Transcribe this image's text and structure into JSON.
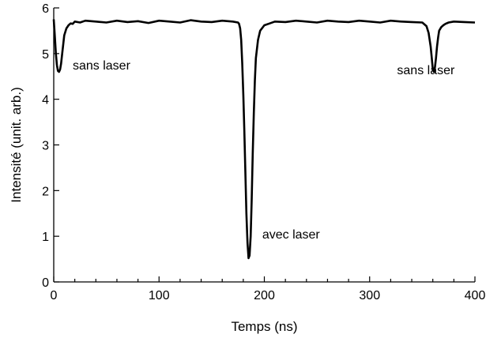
{
  "chart_data": {
    "type": "line",
    "title": "",
    "xlabel": "Temps (ns)",
    "ylabel": "Intensité (unit. arb.)",
    "xlim": [
      0,
      400
    ],
    "ylim": [
      0,
      6
    ],
    "xticks": [
      0,
      100,
      200,
      300,
      400
    ],
    "yticks": [
      0,
      1,
      2,
      3,
      4,
      5,
      6
    ],
    "minor_x_step": 20,
    "grid": false,
    "line_color": "#000000",
    "series": [
      {
        "x": [
          0,
          1,
          2,
          3,
          4,
          5,
          6,
          7,
          8,
          9,
          10,
          12,
          14,
          16,
          18,
          20,
          25,
          30,
          40,
          50,
          60,
          70,
          80,
          90,
          100,
          110,
          120,
          130,
          140,
          150,
          160,
          170,
          175,
          176,
          177,
          178,
          179,
          180,
          181,
          182,
          183,
          184,
          185,
          186,
          187,
          188,
          189,
          190,
          191,
          192,
          194,
          196,
          200,
          205,
          210,
          220,
          230,
          240,
          250,
          260,
          270,
          280,
          290,
          300,
          310,
          320,
          330,
          340,
          350,
          354,
          356,
          358,
          359,
          360,
          361,
          362,
          363,
          364,
          365,
          366,
          368,
          370,
          372,
          375,
          380,
          390,
          400
        ],
        "y": [
          5.75,
          5.4,
          5.0,
          4.75,
          4.62,
          4.6,
          4.65,
          4.78,
          5.0,
          5.2,
          5.4,
          5.55,
          5.62,
          5.66,
          5.65,
          5.7,
          5.68,
          5.72,
          5.7,
          5.68,
          5.72,
          5.69,
          5.71,
          5.67,
          5.72,
          5.7,
          5.68,
          5.73,
          5.7,
          5.69,
          5.72,
          5.7,
          5.68,
          5.65,
          5.55,
          5.3,
          4.8,
          4.1,
          3.3,
          2.4,
          1.5,
          0.85,
          0.52,
          0.58,
          1.0,
          1.8,
          2.8,
          3.7,
          4.4,
          4.9,
          5.3,
          5.5,
          5.62,
          5.66,
          5.7,
          5.69,
          5.72,
          5.7,
          5.68,
          5.72,
          5.7,
          5.69,
          5.72,
          5.7,
          5.68,
          5.72,
          5.7,
          5.69,
          5.68,
          5.6,
          5.45,
          5.15,
          4.9,
          4.65,
          4.6,
          4.7,
          4.9,
          5.15,
          5.35,
          5.5,
          5.58,
          5.62,
          5.65,
          5.68,
          5.7,
          5.69,
          5.68
        ]
      }
    ],
    "annotations": [
      {
        "text": "sans laser",
        "x": 18,
        "y": 4.65
      },
      {
        "text": "avec laser",
        "x": 198,
        "y": 0.95
      },
      {
        "text": "sans laser",
        "x": 326,
        "y": 4.55
      }
    ]
  }
}
